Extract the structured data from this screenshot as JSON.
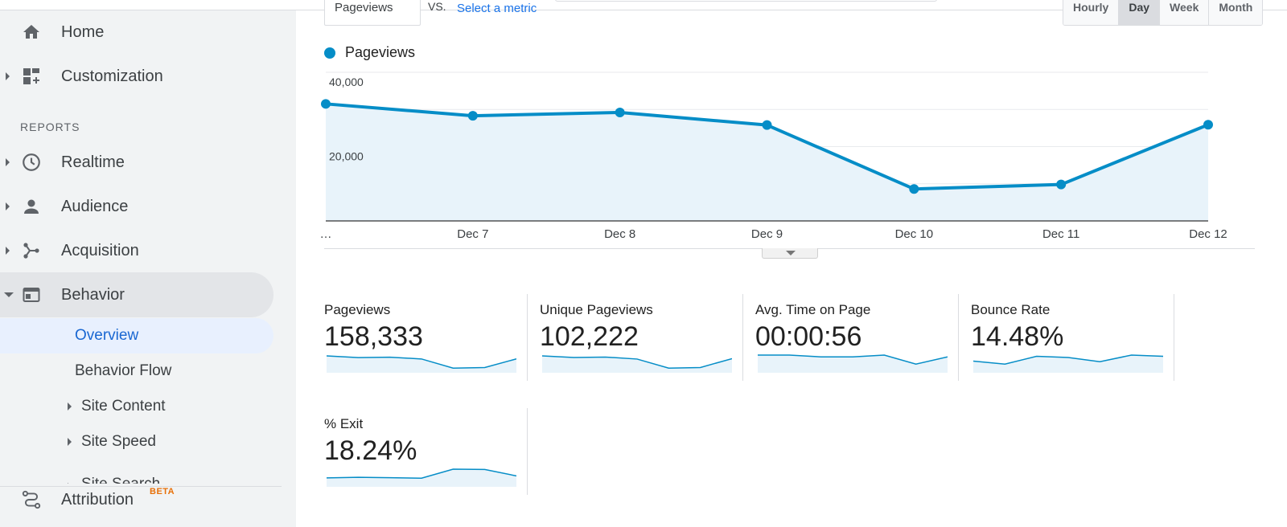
{
  "sidebar": {
    "home": "Home",
    "customization": "Customization",
    "reports_header": "REPORTS",
    "realtime": "Realtime",
    "audience": "Audience",
    "acquisition": "Acquisition",
    "behavior": "Behavior",
    "overview": "Overview",
    "behavior_flow": "Behavior Flow",
    "site_content": "Site Content",
    "site_speed": "Site Speed",
    "site_search": "Site Search",
    "attribution": "Attribution",
    "attribution_badge": "BETA"
  },
  "toolbar": {
    "metric_dropdown": "Pageviews",
    "vs": "VS.",
    "select_metric": "Select a metric",
    "granularity": [
      "Hourly",
      "Day",
      "Week",
      "Month"
    ],
    "granularity_selected": "Day"
  },
  "chart_data": {
    "type": "area",
    "series": [
      {
        "name": "Pageviews",
        "values": [
          31500,
          28300,
          29200,
          25800,
          8600,
          9800,
          25900
        ]
      }
    ],
    "categories": [
      "…",
      "Dec 7",
      "Dec 8",
      "Dec 9",
      "Dec 10",
      "Dec 11",
      "Dec 12"
    ],
    "yticks": [
      "40,000",
      "20,000"
    ],
    "ylim": [
      0,
      40000
    ],
    "color": "#058dc7",
    "fill": "#e8f3fa",
    "legend": "top-left",
    "grid": true
  },
  "scorecards": [
    {
      "name": "Pageviews",
      "value": "158,333",
      "trend": [
        31500,
        28300,
        29200,
        25800,
        8600,
        9800,
        25900
      ]
    },
    {
      "name": "Unique Pageviews",
      "value": "102,222",
      "trend": [
        20500,
        18600,
        19100,
        16700,
        5600,
        6400,
        17200
      ]
    },
    {
      "name": "Avg. Time on Page",
      "value": "00:00:56",
      "trend": [
        57,
        57,
        56,
        56,
        57,
        52,
        56
      ]
    },
    {
      "name": "Bounce Rate",
      "value": "14.48%",
      "trend": [
        14.0,
        13.5,
        14.8,
        14.6,
        13.9,
        15.0,
        14.8
      ]
    },
    {
      "name": "% Exit",
      "value": "18.24%",
      "trend": [
        17.5,
        18.0,
        17.7,
        17.3,
        24.0,
        23.8,
        19.0
      ]
    }
  ]
}
